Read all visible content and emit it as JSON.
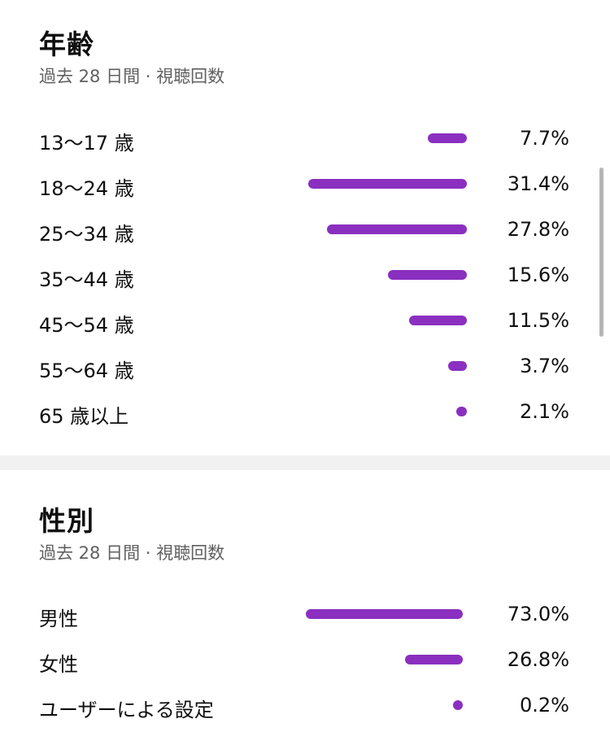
{
  "age": {
    "title": "年齢",
    "subtitle": "過去 28 日間 · 視聴回数",
    "rows": [
      {
        "label": "13〜17 歳",
        "value": "7.7%",
        "pct": 7.7
      },
      {
        "label": "18〜24 歳",
        "value": "31.4%",
        "pct": 31.4
      },
      {
        "label": "25〜34 歳",
        "value": "27.8%",
        "pct": 27.8
      },
      {
        "label": "35〜44 歳",
        "value": "15.6%",
        "pct": 15.6
      },
      {
        "label": "45〜54 歳",
        "value": "11.5%",
        "pct": 11.5
      },
      {
        "label": "55〜64 歳",
        "value": "3.7%",
        "pct": 3.7
      },
      {
        "label": "65 歳以上",
        "value": "2.1%",
        "pct": 2.1
      }
    ]
  },
  "gender": {
    "title": "性別",
    "subtitle": "過去 28 日間 · 視聴回数",
    "rows": [
      {
        "label": "男性",
        "value": "73.0%",
        "pct": 73.0
      },
      {
        "label": "女性",
        "value": "26.8%",
        "pct": 26.8
      },
      {
        "label": "ユーザーによる設定",
        "value": "0.2%",
        "pct": 0.2
      }
    ]
  },
  "colors": {
    "bar": "#8a2fbf"
  }
}
